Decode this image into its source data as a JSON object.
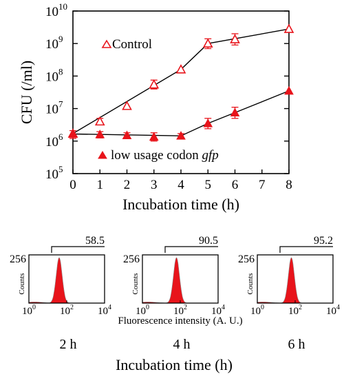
{
  "chart_data": [
    {
      "type": "line",
      "ylabel": "CFU (/ml)",
      "xlabel": "Incubation time (h)",
      "x_ticks": [
        "0",
        "1",
        "2",
        "3",
        "4",
        "5",
        "6",
        "7",
        "8"
      ],
      "y_ticks": [
        {
          "base": "10",
          "exp": "5"
        },
        {
          "base": "10",
          "exp": "6"
        },
        {
          "base": "10",
          "exp": "7"
        },
        {
          "base": "10",
          "exp": "8"
        },
        {
          "base": "10",
          "exp": "9"
        },
        {
          "base": "10",
          "exp": "10"
        }
      ],
      "xlim": [
        0,
        8
      ],
      "ylim": [
        100000,
        10000000000
      ],
      "yscale": "log",
      "grid": false,
      "series": [
        {
          "name": "Control",
          "marker": "open-triangle",
          "color": "#e8141b",
          "x": [
            0,
            1,
            2,
            3,
            4,
            5,
            6,
            8
          ],
          "y": [
            1700000,
            4000000,
            12000000,
            55000000,
            160000000,
            1000000000,
            1350000000,
            2800000000
          ],
          "err_low": [
            0,
            3300000,
            0,
            40000000,
            0,
            700000000,
            900000000,
            0
          ],
          "err_high": [
            0,
            5000000,
            0,
            75000000,
            0,
            1400000000,
            2000000000,
            0
          ],
          "fit_x": [
            0,
            4,
            5,
            8
          ],
          "fit_y": [
            1700000,
            160000000,
            1000000000,
            2800000000
          ]
        },
        {
          "name_parts": [
            "low usage codon ",
            "gfp"
          ],
          "marker": "filled-triangle",
          "color": "#e8141b",
          "x": [
            0,
            1,
            2,
            3,
            4,
            5,
            6,
            8
          ],
          "y": [
            1650000,
            1600000,
            1500000,
            1350000,
            1450000,
            3500000,
            7500000,
            35000000
          ],
          "err_low": [
            1200000,
            1250000,
            1200000,
            1000000,
            1250000,
            2400000,
            5000000,
            0
          ],
          "err_high": [
            2100000,
            1950000,
            1800000,
            1800000,
            1700000,
            5000000,
            11000000,
            0
          ],
          "fit_x": [
            0,
            4,
            5,
            6,
            8
          ],
          "fit_y": [
            1650000,
            1450000,
            3500000,
            7500000,
            35000000
          ]
        }
      ]
    },
    {
      "type": "area",
      "panels": [
        {
          "time": "2 h",
          "percent": "58.5",
          "peak_log": 1.6
        },
        {
          "time": "4 h",
          "percent": "90.5",
          "peak_log": 1.8
        },
        {
          "time": "6 h",
          "percent": "95.2",
          "peak_log": 1.8
        }
      ],
      "y_max": "256",
      "ylabel": "Counts",
      "x_ticks": [
        {
          "base": "10",
          "exp": "0"
        },
        {
          "base": "10",
          "exp": "2"
        },
        {
          "base": "10",
          "exp": "4"
        }
      ],
      "xlabel": "Fluorescence intensity (A. U.)",
      "bottom_label": "Incubation time (h)",
      "fill_color": "#e8141b"
    }
  ]
}
